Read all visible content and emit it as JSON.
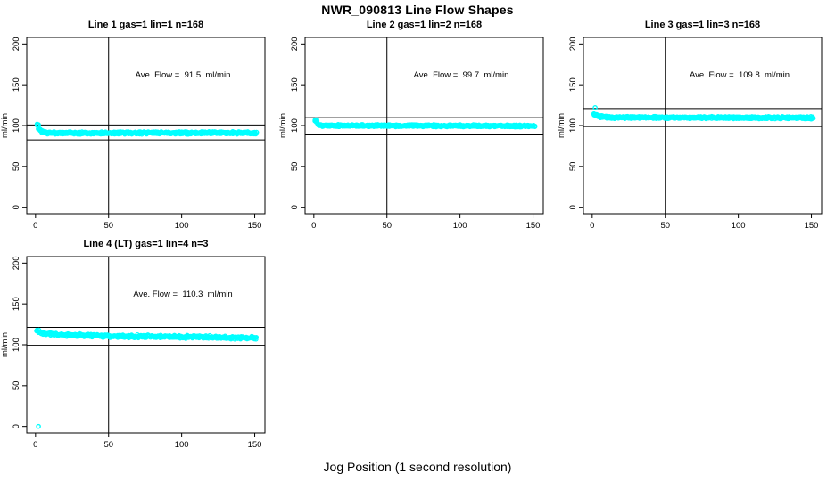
{
  "page": {
    "title": "NWR_090813  Line Flow Shapes",
    "xlabel": "Jog Position (1 second resolution)",
    "background": "#ffffff"
  },
  "colors": {
    "points": "#00ffff",
    "axis": "#000000",
    "text": "#000000"
  },
  "chart_data": [
    {
      "type": "scatter",
      "title": "Line 1 gas=1 lin=1 n=168",
      "ave_flow_label": "Ave. Flow =  91.5  ml/min",
      "ave_flow": 91.5,
      "n": 168,
      "ylabel": "ml/min",
      "x_ticks": [
        0,
        50,
        100,
        150
      ],
      "y_ticks": [
        0,
        50,
        100,
        150,
        200
      ],
      "xlim": [
        -6,
        157
      ],
      "ylim": [
        -8,
        208
      ],
      "vline_x": 50,
      "hlines": [
        100.7,
        82.4
      ],
      "legend": "none",
      "grid": false,
      "series": {
        "name": "flow-trace",
        "x_start": 1,
        "x_end": 151,
        "profile": [
          [
            1,
            101
          ],
          [
            2,
            97
          ],
          [
            4,
            93
          ],
          [
            8,
            91
          ],
          [
            151,
            91
          ]
        ],
        "spread": 1.8,
        "overdraw": 4,
        "seed": 11
      },
      "extra_points": [
        [
          2,
          101
        ]
      ]
    },
    {
      "type": "scatter",
      "title": "Line 2 gas=1 lin=2 n=168",
      "ave_flow_label": "Ave. Flow =  99.7  ml/min",
      "ave_flow": 99.7,
      "n": 168,
      "ylabel": "ml/min",
      "x_ticks": [
        0,
        50,
        100,
        150
      ],
      "y_ticks": [
        0,
        50,
        100,
        150,
        200
      ],
      "xlim": [
        -6,
        157
      ],
      "ylim": [
        -8,
        208
      ],
      "vline_x": 50,
      "hlines": [
        109.7,
        89.7
      ],
      "legend": "none",
      "grid": false,
      "series": {
        "name": "flow-trace",
        "x_start": 1,
        "x_end": 151,
        "profile": [
          [
            1,
            107
          ],
          [
            3,
            102
          ],
          [
            6,
            100
          ],
          [
            151,
            99.5
          ]
        ],
        "spread": 1.6,
        "overdraw": 4,
        "seed": 22
      },
      "extra_points": [
        [
          2,
          107
        ]
      ]
    },
    {
      "type": "scatter",
      "title": "Line 3 gas=1 lin=3 n=168",
      "ave_flow_label": "Ave. Flow =  109.8  ml/min",
      "ave_flow": 109.8,
      "n": 168,
      "ylabel": "ml/min",
      "x_ticks": [
        0,
        50,
        100,
        150
      ],
      "y_ticks": [
        0,
        50,
        100,
        150,
        200
      ],
      "xlim": [
        -6,
        157
      ],
      "ylim": [
        -8,
        208
      ],
      "vline_x": 50,
      "hlines": [
        120.8,
        98.8
      ],
      "legend": "none",
      "grid": false,
      "series": {
        "name": "flow-trace",
        "x_start": 1,
        "x_end": 151,
        "profile": [
          [
            1,
            114
          ],
          [
            4,
            111.5
          ],
          [
            10,
            110
          ],
          [
            151,
            109.5
          ]
        ],
        "spread": 1.8,
        "overdraw": 4,
        "seed": 33
      },
      "extra_points": [
        [
          2,
          122
        ]
      ]
    },
    {
      "type": "scatter",
      "title": "Line 4 (LT) gas=1 lin=4 n=3",
      "ave_flow_label": "Ave. Flow =  110.3  ml/min",
      "ave_flow": 110.3,
      "n": 3,
      "ylabel": "ml/min",
      "x_ticks": [
        0,
        50,
        100,
        150
      ],
      "y_ticks": [
        0,
        50,
        100,
        150,
        200
      ],
      "xlim": [
        -6,
        157
      ],
      "ylim": [
        -8,
        208
      ],
      "vline_x": 50,
      "hlines": [
        121.3,
        99.3
      ],
      "legend": "none",
      "grid": false,
      "series": {
        "name": "flow-trace",
        "x_start": 1,
        "x_end": 151,
        "profile": [
          [
            1,
            117
          ],
          [
            5,
            114
          ],
          [
            20,
            112
          ],
          [
            60,
            110.5
          ],
          [
            151,
            108.5
          ]
        ],
        "spread": 2.3,
        "overdraw": 3,
        "seed": 44
      },
      "extra_points": [
        [
          2,
          0
        ]
      ]
    }
  ]
}
